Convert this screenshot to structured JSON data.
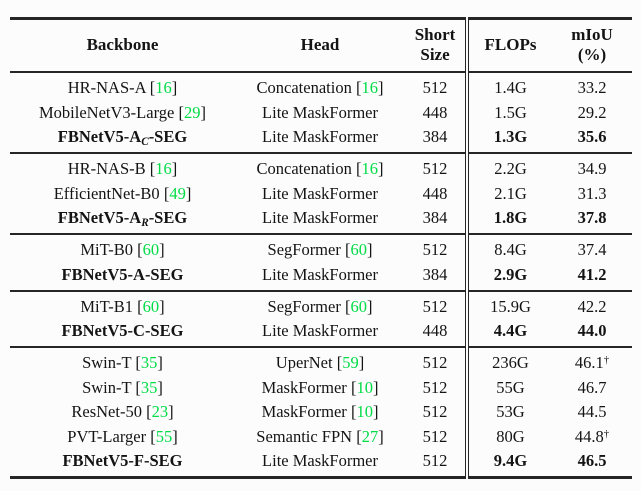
{
  "colors": {
    "text": "#141414",
    "rule": "#262626",
    "cite_green": "#00DC46",
    "background": "#fcfcfc"
  },
  "table": {
    "headers": [
      {
        "key": "backbone",
        "lines": [
          "Backbone"
        ]
      },
      {
        "key": "head",
        "lines": [
          "Head"
        ]
      },
      {
        "key": "short-size",
        "lines": [
          "Short",
          "Size"
        ]
      },
      {
        "key": "flops",
        "lines": [
          "FLOPs"
        ]
      },
      {
        "key": "miou",
        "lines": [
          "mIoU",
          "(%)"
        ]
      }
    ],
    "groups": [
      {
        "rows": [
          {
            "backbone": {
              "text": "HR-NAS-A",
              "cite": "16"
            },
            "head": {
              "text": "Concatenation",
              "cite": "16"
            },
            "short_size": "512",
            "flops": "1.4G",
            "miou": "33.2"
          },
          {
            "backbone": {
              "text": "MobileNetV3-Large",
              "cite": "29"
            },
            "head": {
              "text": "Lite MaskFormer"
            },
            "short_size": "448",
            "flops": "1.5G",
            "miou": "29.2"
          },
          {
            "highlight": true,
            "backbone": {
              "text": "FBNetV5-A",
              "subscript": "C",
              "suffix": "-SEG"
            },
            "head": {
              "text": "Lite MaskFormer"
            },
            "short_size": "384",
            "flops": "1.3G",
            "miou": "35.6"
          }
        ]
      },
      {
        "rows": [
          {
            "backbone": {
              "text": "HR-NAS-B",
              "cite": "16"
            },
            "head": {
              "text": "Concatenation",
              "cite": "16"
            },
            "short_size": "512",
            "flops": "2.2G",
            "miou": "34.9"
          },
          {
            "backbone": {
              "text": "EfficientNet-B0",
              "cite": "49"
            },
            "head": {
              "text": "Lite MaskFormer"
            },
            "short_size": "448",
            "flops": "2.1G",
            "miou": "31.3"
          },
          {
            "highlight": true,
            "backbone": {
              "text": "FBNetV5-A",
              "subscript": "R",
              "suffix": "-SEG"
            },
            "head": {
              "text": "Lite MaskFormer"
            },
            "short_size": "384",
            "flops": "1.8G",
            "miou": "37.8"
          }
        ]
      },
      {
        "rows": [
          {
            "backbone": {
              "text": "MiT-B0",
              "cite": "60"
            },
            "head": {
              "text": "SegFormer",
              "cite": "60"
            },
            "short_size": "512",
            "flops": "8.4G",
            "miou": "37.4"
          },
          {
            "highlight": true,
            "backbone": {
              "text": "FBNetV5-A-SEG"
            },
            "head": {
              "text": "Lite MaskFormer"
            },
            "short_size": "384",
            "flops": "2.9G",
            "miou": "41.2"
          }
        ]
      },
      {
        "rows": [
          {
            "backbone": {
              "text": "MiT-B1",
              "cite": "60"
            },
            "head": {
              "text": "SegFormer",
              "cite": "60"
            },
            "short_size": "512",
            "flops": "15.9G",
            "miou": "42.2"
          },
          {
            "highlight": true,
            "backbone": {
              "text": "FBNetV5-C-SEG"
            },
            "head": {
              "text": "Lite MaskFormer"
            },
            "short_size": "448",
            "flops": "4.4G",
            "miou": "44.0"
          }
        ]
      },
      {
        "rows": [
          {
            "backbone": {
              "text": "Swin-T",
              "cite": "35"
            },
            "head": {
              "text": "UperNet",
              "cite": "59"
            },
            "short_size": "512",
            "flops": "236G",
            "miou": "46.1",
            "miou_dagger": true
          },
          {
            "backbone": {
              "text": "Swin-T",
              "cite": "35"
            },
            "head": {
              "text": "MaskFormer",
              "cite": "10"
            },
            "short_size": "512",
            "flops": "55G",
            "miou": "46.7"
          },
          {
            "backbone": {
              "text": "ResNet-50",
              "cite": "23"
            },
            "head": {
              "text": "MaskFormer",
              "cite": "10"
            },
            "short_size": "512",
            "flops": "53G",
            "miou": "44.5"
          },
          {
            "backbone": {
              "text": "PVT-Larger",
              "cite": "55"
            },
            "head": {
              "text": "Semantic FPN",
              "cite": "27"
            },
            "short_size": "512",
            "flops": "80G",
            "miou": "44.8",
            "miou_dagger": true
          },
          {
            "highlight": true,
            "backbone": {
              "text": "FBNetV5-F-SEG"
            },
            "head": {
              "text": "Lite MaskFormer"
            },
            "short_size": "512",
            "flops": "9.4G",
            "miou": "46.5"
          }
        ]
      }
    ],
    "symbols": {
      "dagger": "†",
      "cite_open": "[",
      "cite_close": "]"
    }
  }
}
